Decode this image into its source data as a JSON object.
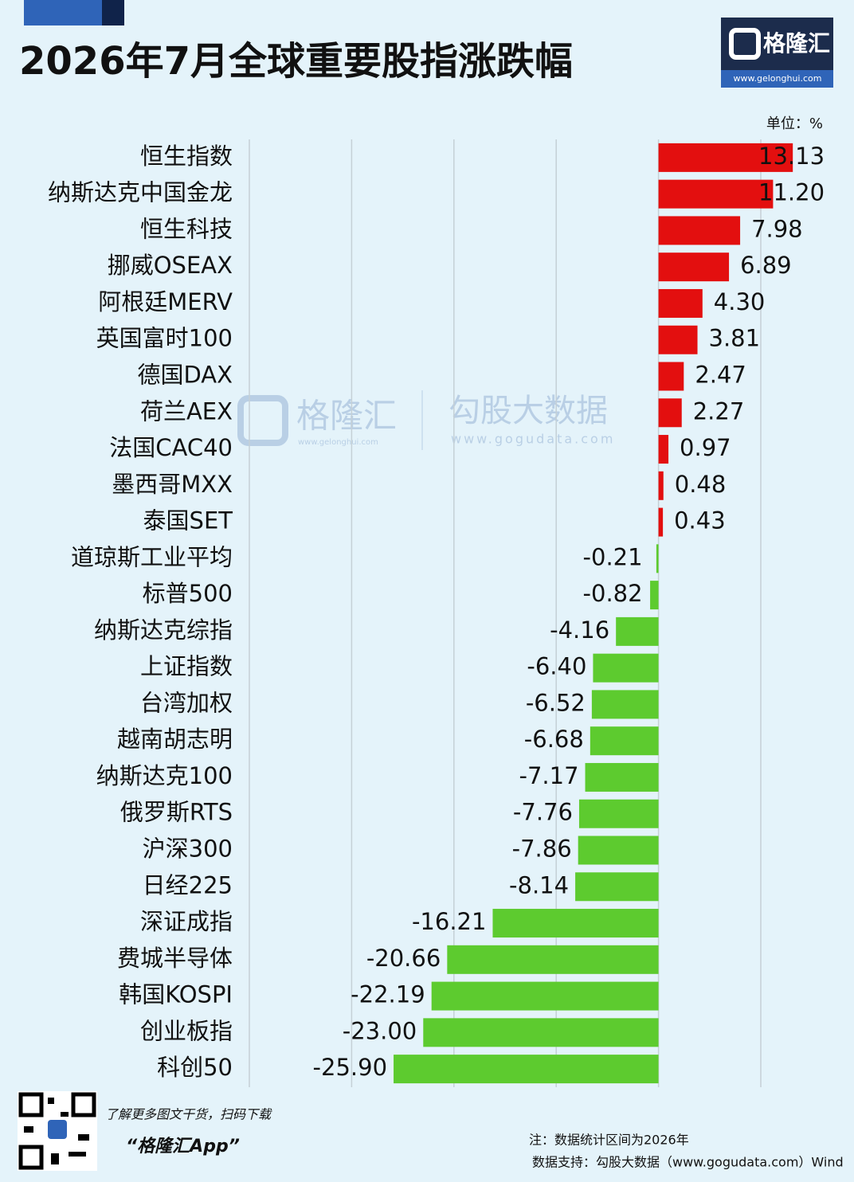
{
  "chart_data": {
    "type": "bar",
    "orientation": "horizontal",
    "title": "2026年7月全球重要股指涨跌幅",
    "unit_label": "单位：%",
    "categories": [
      "恒生指数",
      "纳斯达克中国金龙",
      "恒生科技",
      "挪威OSEAX",
      "阿根廷MERV",
      "英国富时100",
      "德国DAX",
      "荷兰AEX",
      "法国CAC40",
      "墨西哥MXX",
      "泰国SET",
      "道琼斯工业平均",
      "标普500",
      "纳斯达克综指",
      "上证指数",
      "台湾加权",
      "越南胡志明",
      "纳斯达克100",
      "俄罗斯RTS",
      "沪深300",
      "日经225",
      "深证成指",
      "费城半导体",
      "韩国KOSPI",
      "创业板指",
      "科创50"
    ],
    "values": [
      13.13,
      11.2,
      7.98,
      6.89,
      4.3,
      3.81,
      2.47,
      2.27,
      0.97,
      0.48,
      0.43,
      -0.21,
      -0.82,
      -4.16,
      -6.4,
      -6.52,
      -6.68,
      -7.17,
      -7.76,
      -7.86,
      -8.14,
      -16.21,
      -20.66,
      -22.19,
      -23.0,
      -25.9
    ],
    "value_labels": [
      "13.13",
      "11.20",
      "7.98",
      "6.89",
      "4.30",
      "3.81",
      "2.47",
      "2.27",
      "0.97",
      "0.48",
      "0.43",
      "-0.21",
      "-0.82",
      "-4.16",
      "-6.40",
      "-6.52",
      "-6.68",
      "-7.17",
      "-7.76",
      "-7.86",
      "-8.14",
      "-16.21",
      "-20.66",
      "-22.19",
      "-23.00",
      "-25.90"
    ],
    "positive_color": "#e30f0f",
    "negative_color": "#5dcb2f",
    "xlim": [
      -40,
      10
    ],
    "xticks": [
      -40,
      -30,
      -20,
      -10,
      0,
      10
    ],
    "grid": true
  },
  "branding": {
    "logo_text": "格隆汇",
    "logo_url": "www.gelonghui.com",
    "watermark_brand": "格隆汇",
    "watermark_brand_url": "www.gelonghui.com",
    "watermark_data": "勾股大数据",
    "watermark_data_url": "www.gogudata.com"
  },
  "footer": {
    "promo": "了解更多图文干货，扫码下载",
    "app": "“格隆汇App”",
    "note": "注：数据统计区间为2026年",
    "source": "数据支持：勾股大数据（www.gogudata.com）Wind"
  }
}
